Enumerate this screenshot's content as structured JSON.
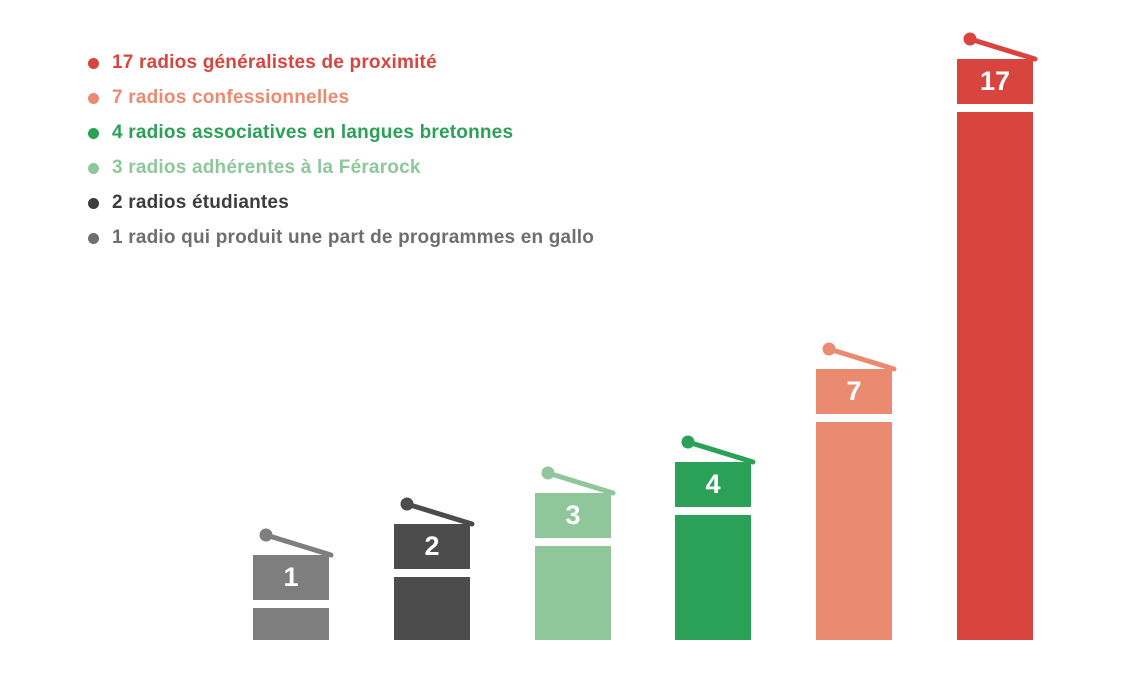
{
  "legend": {
    "items": [
      {
        "label": "17 radios généralistes de proximité",
        "color": "#d8453e"
      },
      {
        "label": "7 radios confessionnelles",
        "color": "#ea8a71"
      },
      {
        "label": "4 radios associatives en langues bretonnes",
        "color": "#2aa157"
      },
      {
        "label": "3 radios adhérentes à la Férarock",
        "color": "#8fc79b"
      },
      {
        "label": "2 radios étudiantes",
        "color": "#3d3d3d"
      },
      {
        "label": "1 radio qui produit une part de programmes en gallo",
        "color": "#6e6e6e"
      }
    ]
  },
  "chart_data": {
    "type": "bar",
    "categories": [
      "1 radio qui produit une part de programmes en gallo",
      "2 radios étudiantes",
      "3 radios adhérentes à la Férarock",
      "4 radios associatives en langues bretonnes",
      "7 radios confessionnelles",
      "17 radios généralistes de proximité"
    ],
    "values": [
      1,
      2,
      3,
      4,
      7,
      17
    ],
    "bar_labels": [
      "1",
      "2",
      "3",
      "4",
      "7",
      "17"
    ],
    "colors": [
      "#7e7e7e",
      "#4c4c4c",
      "#8fc79b",
      "#2aa157",
      "#ea8a71",
      "#d8453e"
    ],
    "title": "",
    "xlabel": "",
    "ylabel": "",
    "ylim": [
      0,
      17
    ],
    "grid": false,
    "axes_visible": false,
    "legend_position": "top-left",
    "bar_style": "radio-with-antenna"
  }
}
